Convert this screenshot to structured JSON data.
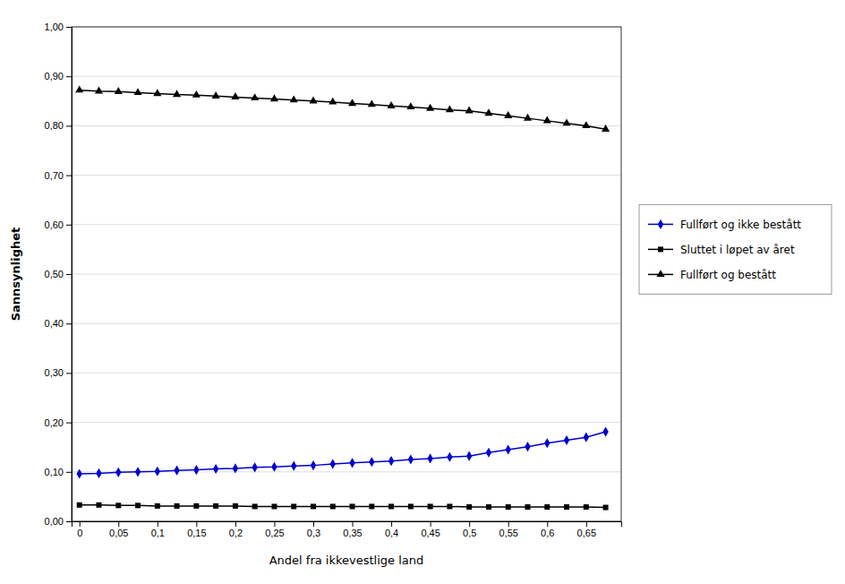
{
  "chart_data": {
    "type": "line",
    "xlabel": "Andel fra ikkevestlige land",
    "ylabel": "Sannsynlighet",
    "x": [
      0,
      0.025,
      0.05,
      0.075,
      0.1,
      0.125,
      0.15,
      0.175,
      0.2,
      0.225,
      0.25,
      0.275,
      0.3,
      0.325,
      0.35,
      0.375,
      0.4,
      0.425,
      0.45,
      0.475,
      0.5,
      0.525,
      0.55,
      0.575,
      0.6,
      0.625,
      0.65,
      0.675
    ],
    "series": [
      {
        "name": "Fullført og ikke bestått",
        "color": "#0000CC",
        "marker": "diamond",
        "values": [
          0.096,
          0.097,
          0.099,
          0.1,
          0.101,
          0.103,
          0.104,
          0.106,
          0.107,
          0.109,
          0.11,
          0.112,
          0.113,
          0.116,
          0.118,
          0.12,
          0.122,
          0.125,
          0.127,
          0.13,
          0.132,
          0.139,
          0.145,
          0.151,
          0.158,
          0.164,
          0.17,
          0.181
        ]
      },
      {
        "name": "Sluttet i løpet av året",
        "color": "#000000",
        "marker": "square",
        "values": [
          0.033,
          0.033,
          0.032,
          0.032,
          0.031,
          0.031,
          0.031,
          0.031,
          0.031,
          0.03,
          0.03,
          0.03,
          0.03,
          0.03,
          0.03,
          0.03,
          0.03,
          0.03,
          0.03,
          0.03,
          0.029,
          0.029,
          0.029,
          0.029,
          0.029,
          0.029,
          0.029,
          0.028
        ]
      },
      {
        "name": "Fullført og bestått",
        "color": "#000000",
        "marker": "triangle",
        "values": [
          0.872,
          0.87,
          0.869,
          0.867,
          0.865,
          0.863,
          0.862,
          0.86,
          0.858,
          0.856,
          0.854,
          0.852,
          0.85,
          0.848,
          0.845,
          0.843,
          0.84,
          0.838,
          0.835,
          0.832,
          0.83,
          0.825,
          0.82,
          0.815,
          0.81,
          0.805,
          0.8,
          0.793
        ]
      }
    ],
    "xlim": [
      -0.01,
      0.695
    ],
    "xticks": [
      0,
      {
        "value": 0.05,
        "label": "0,05"
      },
      {
        "value": 0.1,
        "label": "0,1"
      },
      {
        "value": 0.15,
        "label": "0,15"
      },
      {
        "value": 0.2,
        "label": "0,2"
      },
      {
        "value": 0.25,
        "label": "0,25"
      },
      {
        "value": 0.3,
        "label": "0,3"
      },
      {
        "value": 0.35,
        "label": "0,35"
      },
      {
        "value": 0.4,
        "label": "0,4"
      },
      {
        "value": 0.45,
        "label": "0,45"
      },
      {
        "value": 0.5,
        "label": "0,5"
      },
      {
        "value": 0.55,
        "label": "0,55"
      },
      {
        "value": 0.6,
        "label": "0,6"
      },
      {
        "value": 0.65,
        "label": "0,65"
      }
    ],
    "ylim": [
      0.0,
      1.0
    ],
    "yticks": [
      {
        "value": 0.0,
        "label": "0,00"
      },
      {
        "value": 0.1,
        "label": "0,10"
      },
      {
        "value": 0.2,
        "label": "0,20"
      },
      {
        "value": 0.3,
        "label": "0,30"
      },
      {
        "value": 0.4,
        "label": "0,40"
      },
      {
        "value": 0.5,
        "label": "0,50"
      },
      {
        "value": 0.6,
        "label": "0,60"
      },
      {
        "value": 0.7,
        "label": "0,70"
      },
      {
        "value": 0.8,
        "label": "0,80"
      },
      {
        "value": 0.9,
        "label": "0,90"
      },
      {
        "value": 1.0,
        "label": "1,00"
      }
    ],
    "grid": true,
    "legend": "right"
  }
}
